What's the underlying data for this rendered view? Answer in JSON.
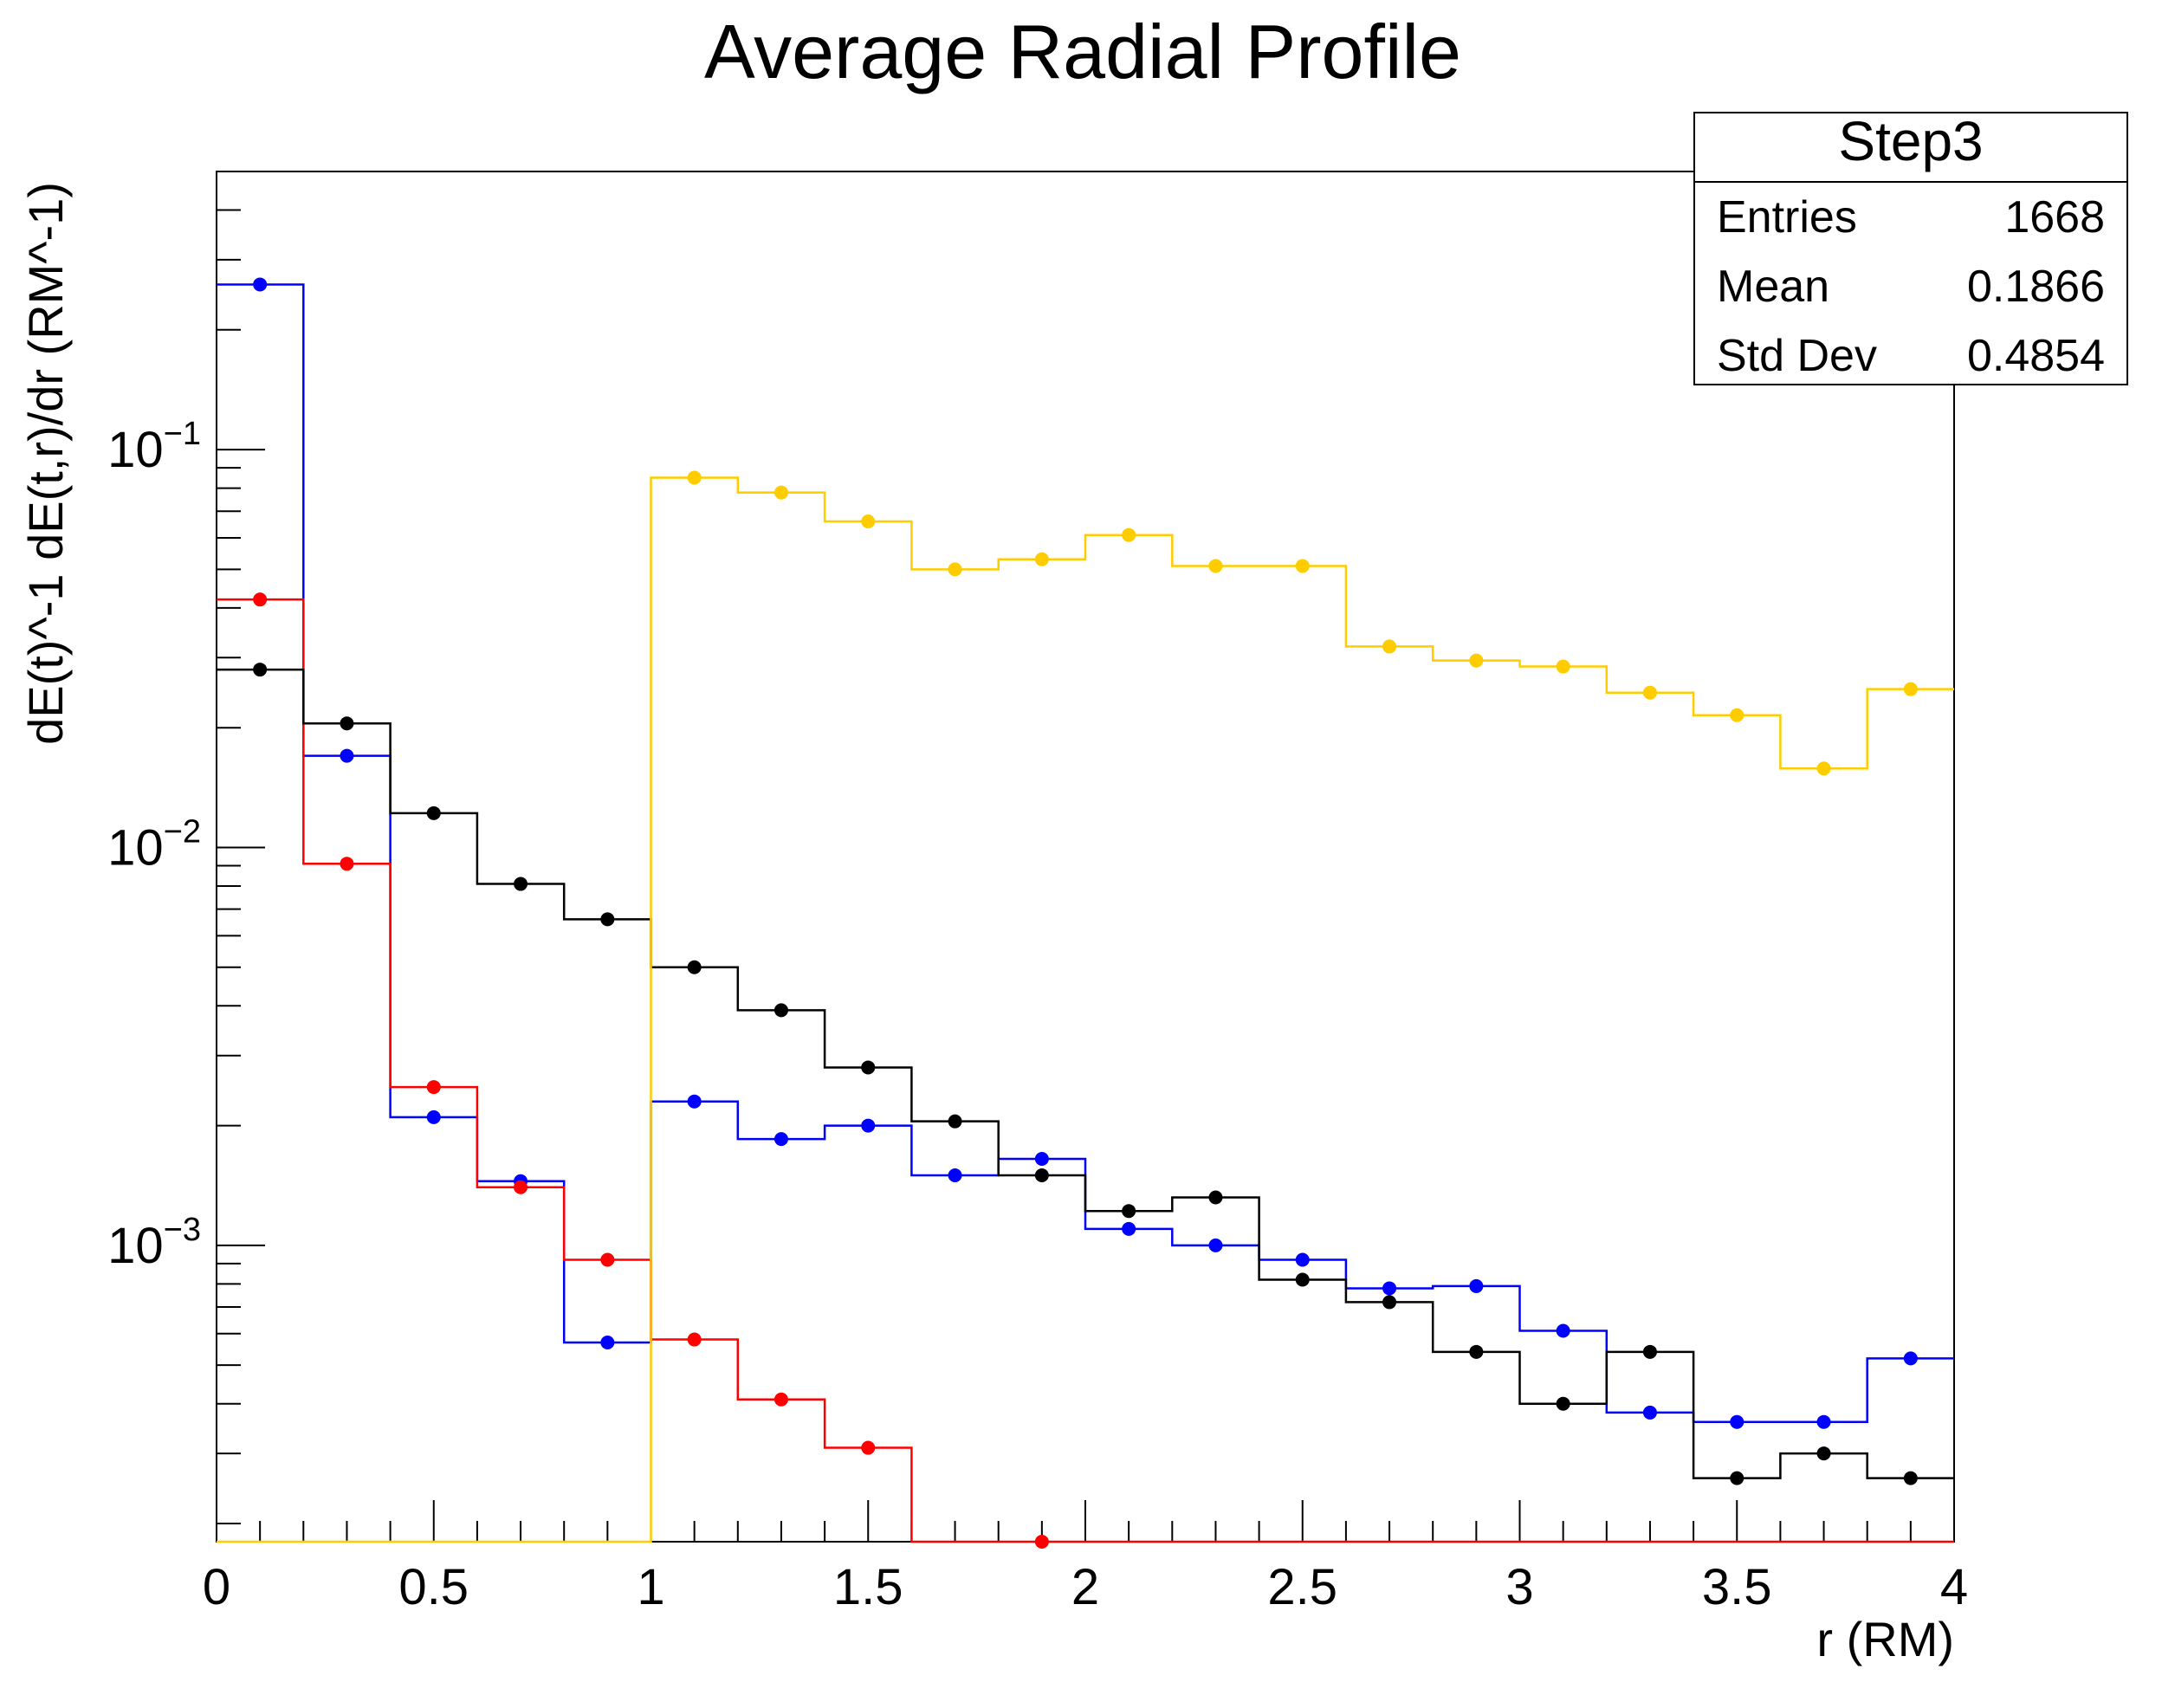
{
  "chart_data": {
    "type": "line",
    "title": "Average Radial Profile",
    "xlabel": "r (RM)",
    "ylabel": "dE(t)^-1 dE(t,r)/dr (RM^-1)",
    "xlim": [
      0,
      4
    ],
    "ylim": [
      0.00018,
      0.5
    ],
    "yscale": "log",
    "grid": false,
    "style": "step-histogram-with-markers",
    "x_ticks": [
      "0",
      "0.5",
      "1",
      "1.5",
      "2",
      "2.5",
      "3",
      "3.5",
      "4"
    ],
    "y_ticks": [
      {
        "base": "10",
        "exp": "−1"
      },
      {
        "base": "10",
        "exp": "−2"
      },
      {
        "base": "10",
        "exp": "−3"
      }
    ],
    "bin_edges": [
      0,
      0.2,
      0.4,
      0.6,
      0.8,
      1.0,
      1.2,
      1.4,
      1.6,
      1.8,
      2.0,
      2.2,
      2.4,
      2.6,
      2.8,
      3.0,
      3.2,
      3.4,
      3.6,
      3.8,
      4.0
    ],
    "series": [
      {
        "color": "#0000ff",
        "values": [
          0.26,
          0.017,
          0.0021,
          0.00145,
          0.00057,
          0.0023,
          0.00185,
          0.002,
          0.0015,
          0.00165,
          0.0011,
          0.001,
          0.00092,
          0.00078,
          0.00079,
          0.00061,
          0.00038,
          0.00036,
          0.00036,
          0.00052
        ]
      },
      {
        "color": "#ff0000",
        "values": [
          0.042,
          0.0091,
          0.0025,
          0.0014,
          0.00092,
          0.00058,
          0.00041,
          0.00031,
          0.00018,
          0.00018,
          0.00018,
          0.00018,
          0.00018,
          0.00018,
          0.00018,
          0.00018,
          0.00018,
          0.00018,
          0.00018,
          0.00018
        ],
        "markers_shown": [
          true,
          true,
          true,
          true,
          true,
          true,
          true,
          true,
          false,
          true,
          false,
          false,
          false,
          false,
          false,
          false,
          false,
          false,
          false,
          false
        ]
      },
      {
        "color": "#000000",
        "values": [
          0.028,
          0.0205,
          0.0122,
          0.0081,
          0.0066,
          0.005,
          0.0039,
          0.0028,
          0.00205,
          0.0015,
          0.00122,
          0.00132,
          0.00082,
          0.00072,
          0.00054,
          0.0004,
          0.00054,
          0.00026,
          0.0003,
          0.00026
        ]
      },
      {
        "color": "#ffcc00",
        "values": [
          0.00018,
          0.00018,
          0.00018,
          0.00018,
          0.00018,
          0.085,
          0.078,
          0.066,
          0.05,
          0.053,
          0.061,
          0.051,
          0.051,
          0.032,
          0.0295,
          0.0285,
          0.0245,
          0.0215,
          0.0158,
          0.025
        ],
        "markers_shown": [
          false,
          false,
          false,
          false,
          false,
          true,
          true,
          true,
          true,
          true,
          true,
          true,
          true,
          true,
          true,
          true,
          true,
          true,
          true,
          true
        ]
      }
    ],
    "stats_box": {
      "title": "Step3",
      "rows": [
        {
          "label": "Entries",
          "value": "1668"
        },
        {
          "label": "Mean",
          "value": "0.1866"
        },
        {
          "label": "Std Dev",
          "value": "0.4854"
        }
      ]
    }
  }
}
